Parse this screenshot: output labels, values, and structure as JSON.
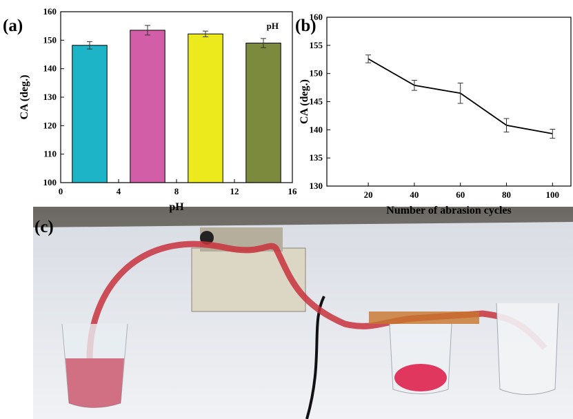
{
  "chart_data": [
    {
      "type": "bar",
      "panel": "(a)",
      "annotation": "pH",
      "x_label": "pH",
      "y_label": "CA (deg.)",
      "x": [
        2,
        6,
        10,
        14
      ],
      "values": [
        148.2,
        153.5,
        152.2,
        149.0
      ],
      "errors": [
        1.3,
        1.7,
        1.0,
        1.6
      ],
      "colors": [
        "#1db4c8",
        "#d15ea6",
        "#ecea1c",
        "#7b8a3c"
      ],
      "xlim": [
        0,
        16
      ],
      "xticks": [
        0,
        4,
        8,
        12,
        16
      ],
      "ylim": [
        100,
        160
      ],
      "yticks": [
        100,
        110,
        120,
        130,
        140,
        150,
        160
      ]
    },
    {
      "type": "line",
      "panel": "(b)",
      "x_label": "Number of abrasion cycles",
      "y_label": "CA (deg.)",
      "x": [
        20,
        40,
        60,
        80,
        100
      ],
      "values": [
        152.6,
        147.9,
        146.5,
        140.8,
        139.3
      ],
      "errors": [
        0.7,
        0.9,
        1.8,
        1.2,
        0.8
      ],
      "color": "#000000",
      "xlim": [
        2,
        108
      ],
      "xticks": [
        20,
        40,
        60,
        80,
        100
      ],
      "ylim": [
        130,
        160
      ],
      "yticks": [
        130,
        135,
        140,
        145,
        150,
        155,
        160
      ]
    }
  ],
  "photo": {
    "panel": "(c)"
  }
}
